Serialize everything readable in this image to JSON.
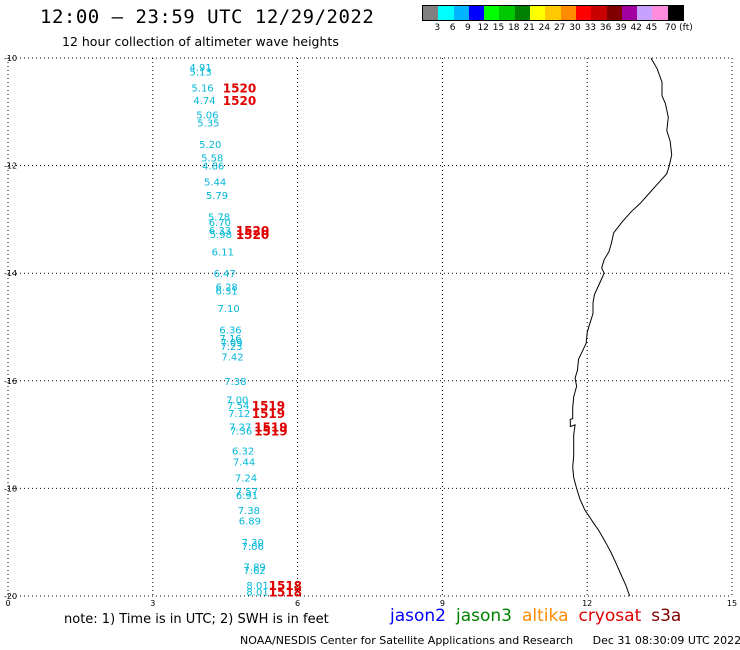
{
  "header": {
    "title": "12:00 – 23:59 UTC 12/29/2022",
    "subtitle": "12 hour collection of altimeter wave heights"
  },
  "legend": {
    "colors": [
      "#808080",
      "#00ffff",
      "#00b4ff",
      "#0000ff",
      "#00ff00",
      "#00c800",
      "#008000",
      "#ffff00",
      "#ffc800",
      "#ff8c00",
      "#ff0000",
      "#c80000",
      "#800000",
      "#a000a0",
      "#c8a0ff",
      "#ff8cdc",
      "#000000"
    ],
    "labels": [
      "3",
      "6",
      "9",
      "12",
      "15",
      "18",
      "21",
      "24",
      "27",
      "30",
      "33",
      "36",
      "39",
      "42",
      "45",
      "70 (ft)"
    ]
  },
  "map": {
    "x_ticks": [
      "0",
      "3",
      "6",
      "9",
      "12",
      "15"
    ],
    "y_ticks": [
      "-10",
      "-12",
      "-14",
      "-16",
      "-18",
      "-20"
    ],
    "x_range": [
      0,
      15
    ],
    "y_range": [
      -10,
      -20
    ],
    "grid": true,
    "swh_points": [
      {
        "x": 3.76,
        "y": -10.17,
        "v": "4.91"
      },
      {
        "x": 3.76,
        "y": -10.25,
        "v": "5.13"
      },
      {
        "x": 3.8,
        "y": -10.55,
        "v": "5.16"
      },
      {
        "x": 3.84,
        "y": -10.78,
        "v": "4.74"
      },
      {
        "x": 3.9,
        "y": -11.05,
        "v": "5.06"
      },
      {
        "x": 3.92,
        "y": -11.2,
        "v": "5.35"
      },
      {
        "x": 3.96,
        "y": -11.6,
        "v": "5.20"
      },
      {
        "x": 4.0,
        "y": -11.85,
        "v": "5.58"
      },
      {
        "x": 4.02,
        "y": -12.0,
        "v": "4.86"
      },
      {
        "x": 4.06,
        "y": -12.3,
        "v": "5.44"
      },
      {
        "x": 4.1,
        "y": -12.55,
        "v": "5.79"
      },
      {
        "x": 4.14,
        "y": -12.95,
        "v": "5.78"
      },
      {
        "x": 4.16,
        "y": -13.05,
        "v": "6.70"
      },
      {
        "x": 4.16,
        "y": -13.2,
        "v": "6.33"
      },
      {
        "x": 4.18,
        "y": -13.27,
        "v": "5.98"
      },
      {
        "x": 4.22,
        "y": -13.6,
        "v": "6.11"
      },
      {
        "x": 4.26,
        "y": -14.0,
        "v": "6.47"
      },
      {
        "x": 4.3,
        "y": -14.25,
        "v": "6.28"
      },
      {
        "x": 4.3,
        "y": -14.32,
        "v": "6.31"
      },
      {
        "x": 4.34,
        "y": -14.65,
        "v": "7.10"
      },
      {
        "x": 4.38,
        "y": -15.05,
        "v": "6.36"
      },
      {
        "x": 4.38,
        "y": -15.2,
        "v": "7.16"
      },
      {
        "x": 4.4,
        "y": -15.28,
        "v": "7.09"
      },
      {
        "x": 4.4,
        "y": -15.35,
        "v": "7.23"
      },
      {
        "x": 4.42,
        "y": -15.55,
        "v": "7.42"
      },
      {
        "x": 4.48,
        "y": -16.0,
        "v": "7.38"
      },
      {
        "x": 4.52,
        "y": -16.35,
        "v": "7.00"
      },
      {
        "x": 4.54,
        "y": -16.45,
        "v": "7.54"
      },
      {
        "x": 4.56,
        "y": -16.6,
        "v": "7.12"
      },
      {
        "x": 4.58,
        "y": -16.85,
        "v": "7.27"
      },
      {
        "x": 4.6,
        "y": -16.92,
        "v": "7.36"
      },
      {
        "x": 4.64,
        "y": -17.3,
        "v": "6.32"
      },
      {
        "x": 4.66,
        "y": -17.5,
        "v": "7.44"
      },
      {
        "x": 4.7,
        "y": -17.8,
        "v": "7.24"
      },
      {
        "x": 4.72,
        "y": -18.05,
        "v": "7.57"
      },
      {
        "x": 4.72,
        "y": -18.12,
        "v": "6.91"
      },
      {
        "x": 4.76,
        "y": -18.4,
        "v": "7.38"
      },
      {
        "x": 4.78,
        "y": -18.6,
        "v": "6.89"
      },
      {
        "x": 4.84,
        "y": -19.0,
        "v": "7.30"
      },
      {
        "x": 4.84,
        "y": -19.07,
        "v": "7.06"
      },
      {
        "x": 4.88,
        "y": -19.45,
        "v": "7.89"
      },
      {
        "x": 4.88,
        "y": -19.52,
        "v": "7.62"
      },
      {
        "x": 4.94,
        "y": -19.8,
        "v": "8.01"
      },
      {
        "x": 4.94,
        "y": -19.92,
        "v": "8.01"
      }
    ],
    "pass_labels": [
      {
        "x": 4.45,
        "y": -10.55,
        "t": "1520"
      },
      {
        "x": 4.45,
        "y": -10.78,
        "t": "1520"
      },
      {
        "x": 4.72,
        "y": -13.2,
        "t": "1520"
      },
      {
        "x": 4.72,
        "y": -13.27,
        "t": "1520"
      },
      {
        "x": 5.05,
        "y": -16.45,
        "t": "1519"
      },
      {
        "x": 5.05,
        "y": -16.6,
        "t": "1519"
      },
      {
        "x": 5.1,
        "y": -16.85,
        "t": "1519"
      },
      {
        "x": 5.1,
        "y": -16.92,
        "t": "1519"
      },
      {
        "x": 5.4,
        "y": -19.8,
        "t": "1518"
      },
      {
        "x": 5.4,
        "y": -19.92,
        "t": "1518"
      }
    ],
    "coastline": [
      [
        13.32,
        -10.0
      ],
      [
        13.45,
        -10.2
      ],
      [
        13.55,
        -10.45
      ],
      [
        13.55,
        -10.7
      ],
      [
        13.62,
        -10.85
      ],
      [
        13.68,
        -11.1
      ],
      [
        13.65,
        -11.35
      ],
      [
        13.72,
        -11.55
      ],
      [
        13.75,
        -11.8
      ],
      [
        13.7,
        -12.0
      ],
      [
        13.65,
        -12.15
      ],
      [
        13.5,
        -12.3
      ],
      [
        13.3,
        -12.5
      ],
      [
        13.1,
        -12.7
      ],
      [
        12.92,
        -12.85
      ],
      [
        12.72,
        -13.05
      ],
      [
        12.55,
        -13.25
      ],
      [
        12.5,
        -13.45
      ],
      [
        12.45,
        -13.6
      ],
      [
        12.35,
        -13.75
      ],
      [
        12.3,
        -13.9
      ],
      [
        12.35,
        -14.0
      ],
      [
        12.25,
        -14.2
      ],
      [
        12.15,
        -14.4
      ],
      [
        12.12,
        -14.55
      ],
      [
        12.12,
        -14.75
      ],
      [
        12.05,
        -14.95
      ],
      [
        12.0,
        -15.1
      ],
      [
        11.98,
        -15.3
      ],
      [
        11.9,
        -15.45
      ],
      [
        11.82,
        -15.6
      ],
      [
        11.8,
        -15.8
      ],
      [
        11.75,
        -15.95
      ],
      [
        11.78,
        -16.1
      ],
      [
        11.72,
        -16.3
      ],
      [
        11.7,
        -16.5
      ],
      [
        11.7,
        -16.7
      ],
      [
        11.65,
        -16.72
      ],
      [
        11.65,
        -16.85
      ],
      [
        11.75,
        -16.82
      ],
      [
        11.72,
        -17.0
      ],
      [
        11.72,
        -17.2
      ],
      [
        11.72,
        -17.4
      ],
      [
        11.7,
        -17.6
      ],
      [
        11.72,
        -17.8
      ],
      [
        11.78,
        -18.0
      ],
      [
        11.85,
        -18.2
      ],
      [
        11.95,
        -18.4
      ],
      [
        12.1,
        -18.6
      ],
      [
        12.25,
        -18.8
      ],
      [
        12.38,
        -19.0
      ],
      [
        12.5,
        -19.2
      ],
      [
        12.6,
        -19.4
      ],
      [
        12.7,
        -19.6
      ],
      [
        12.8,
        -19.8
      ],
      [
        12.88,
        -20.0
      ]
    ]
  },
  "note": "note: 1) Time is in UTC; 2) SWH is in feet",
  "satellites": [
    {
      "name": "jason2",
      "color": "#0000ff"
    },
    {
      "name": "jason3",
      "color": "#008000"
    },
    {
      "name": "altika",
      "color": "#ff8c00"
    },
    {
      "name": "cryosat",
      "color": "#e00000"
    },
    {
      "name": "s3a",
      "color": "#800000"
    }
  ],
  "footer": {
    "credit": "NOAA/NESDIS Center for Satellite Applications and Research",
    "timestamp": "Dec 31 08:30:09 UTC 2022"
  }
}
